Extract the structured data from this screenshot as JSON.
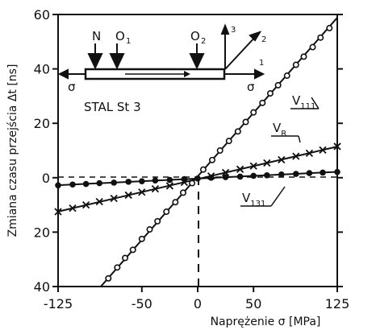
{
  "chart_data": {
    "type": "scatter",
    "ylabel": "Zmiana czasu przejścia Δt [ns]",
    "xlabel": "Naprężenie σ [MPa]",
    "xlim": [
      -125,
      125
    ],
    "ylim": [
      -40,
      60
    ],
    "x_ticks": [
      -125,
      -50,
      0,
      50,
      125
    ],
    "y_ticks": [
      {
        "value": 60,
        "label": "60"
      },
      {
        "value": 40,
        "label": "40"
      },
      {
        "value": 20,
        "label": "20"
      },
      {
        "value": 0,
        "label": "0"
      },
      {
        "value": -20,
        "label": "20"
      },
      {
        "value": -40,
        "label": "40"
      }
    ],
    "annotation": "STAL St 3",
    "series": [
      {
        "name": "V111",
        "label_main": "V",
        "label_sub": "111",
        "marker": "open-circle",
        "fit": {
          "slope": 0.4667,
          "intercept": 0.5
        },
        "points": [
          {
            "x": -80,
            "y": -37
          },
          {
            "x": -72,
            "y": -33
          },
          {
            "x": -65,
            "y": -29.5
          },
          {
            "x": -58,
            "y": -26.5
          },
          {
            "x": -50,
            "y": -22.5
          },
          {
            "x": -43,
            "y": -19
          },
          {
            "x": -36,
            "y": -16
          },
          {
            "x": -28,
            "y": -12.5
          },
          {
            "x": -20,
            "y": -9
          },
          {
            "x": -13,
            "y": -5.5
          },
          {
            "x": -5,
            "y": -2
          },
          {
            "x": 5,
            "y": 3
          },
          {
            "x": 13,
            "y": 6.5
          },
          {
            "x": 20,
            "y": 10
          },
          {
            "x": 28,
            "y": 13.5
          },
          {
            "x": 36,
            "y": 17
          },
          {
            "x": 43,
            "y": 20.5
          },
          {
            "x": 50,
            "y": 24
          },
          {
            "x": 58,
            "y": 27.5
          },
          {
            "x": 65,
            "y": 31
          },
          {
            "x": 72,
            "y": 34
          },
          {
            "x": 80,
            "y": 37.5
          },
          {
            "x": 88,
            "y": 41.5
          },
          {
            "x": 95,
            "y": 44.5
          },
          {
            "x": 103,
            "y": 48
          },
          {
            "x": 110,
            "y": 51.5
          },
          {
            "x": 118,
            "y": 55
          }
        ]
      },
      {
        "name": "VR",
        "label_main": "V",
        "label_sub": "R",
        "marker": "cross",
        "fit": {
          "slope": 0.0955,
          "intercept": -0.5
        },
        "points": [
          {
            "x": -125,
            "y": -12.5
          },
          {
            "x": -112,
            "y": -11.2
          },
          {
            "x": -100,
            "y": -10
          },
          {
            "x": -88,
            "y": -8.8
          },
          {
            "x": -75,
            "y": -7.6
          },
          {
            "x": -62,
            "y": -6.4
          },
          {
            "x": -50,
            "y": -5.3
          },
          {
            "x": -38,
            "y": -4.1
          },
          {
            "x": -25,
            "y": -3
          },
          {
            "x": -12,
            "y": -1.7
          },
          {
            "x": 12,
            "y": 0.6
          },
          {
            "x": 25,
            "y": 1.9
          },
          {
            "x": 38,
            "y": 3.1
          },
          {
            "x": 50,
            "y": 4.3
          },
          {
            "x": 62,
            "y": 5.4
          },
          {
            "x": 75,
            "y": 6.6
          },
          {
            "x": 88,
            "y": 7.9
          },
          {
            "x": 100,
            "y": 9
          },
          {
            "x": 112,
            "y": 10.2
          },
          {
            "x": 125,
            "y": 11.5
          }
        ]
      },
      {
        "name": "V131",
        "label_main": "V",
        "label_sub": "131",
        "marker": "filled-circle",
        "fit": {
          "slope": 0.0196,
          "intercept": -0.3
        },
        "points": [
          {
            "x": -125,
            "y": -2.8
          },
          {
            "x": -112,
            "y": -2.5
          },
          {
            "x": -100,
            "y": -2.3
          },
          {
            "x": -88,
            "y": -2
          },
          {
            "x": -75,
            "y": -1.8
          },
          {
            "x": -62,
            "y": -1.5
          },
          {
            "x": -50,
            "y": -1.3
          },
          {
            "x": -38,
            "y": -1
          },
          {
            "x": -25,
            "y": -0.8
          },
          {
            "x": -12,
            "y": -0.5
          },
          {
            "x": 0,
            "y": -0.3
          },
          {
            "x": 12,
            "y": 0
          },
          {
            "x": 25,
            "y": 0.2
          },
          {
            "x": 38,
            "y": 0.4
          },
          {
            "x": 50,
            "y": 0.7
          },
          {
            "x": 62,
            "y": 0.9
          },
          {
            "x": 75,
            "y": 1.2
          },
          {
            "x": 88,
            "y": 1.4
          },
          {
            "x": 100,
            "y": 1.7
          },
          {
            "x": 112,
            "y": 1.9
          },
          {
            "x": 125,
            "y": 2.1
          }
        ]
      }
    ],
    "inset": {
      "labels": {
        "n": "N",
        "o1": "O",
        "o1_sub": "1",
        "o2": "O",
        "o2_sub": "2",
        "axis3": "3",
        "axis2": "2",
        "axis1": "1",
        "sigma_left": "σ",
        "sigma_right": "σ"
      }
    }
  }
}
